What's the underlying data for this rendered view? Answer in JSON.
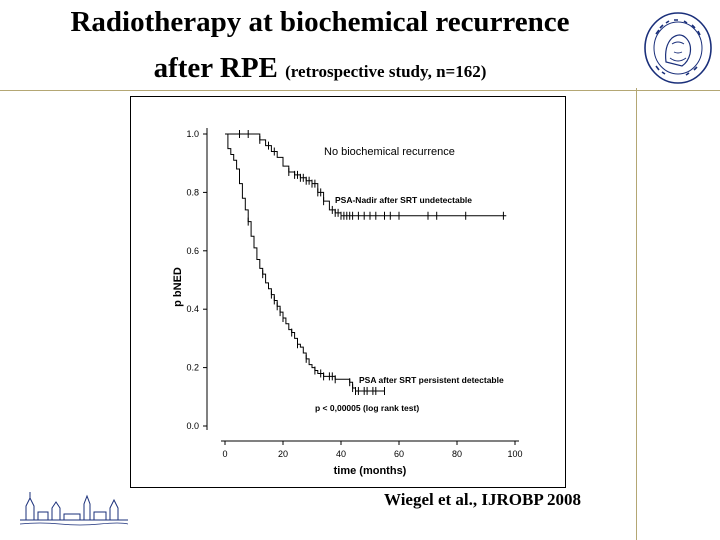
{
  "slide": {
    "title_line1": "Radiotherapy at biochemical recurrence",
    "title_line2_main": "after RPE",
    "title_line2_sub": "(retrospective study, n=162)",
    "citation": "Wiegel et al., IJROBP 2008"
  },
  "colors": {
    "rule": "#b4a774",
    "seal": "#1a2f7a",
    "curve": "#000000"
  },
  "chart_data": {
    "type": "line",
    "title": "",
    "xlabel": "time (months)",
    "ylabel": "p bNED",
    "xlim": [
      0,
      100
    ],
    "ylim": [
      0,
      1.0
    ],
    "x_ticks": [
      0,
      20,
      40,
      60,
      80,
      100
    ],
    "y_ticks": [
      0.0,
      0.2,
      0.4,
      0.6,
      0.8,
      1.0
    ],
    "x_tick_labels": [
      "0",
      "20",
      "40",
      "60",
      "80",
      "100"
    ],
    "y_tick_labels": [
      "0.0",
      "0.2",
      "0.4",
      "0.6",
      "0.8",
      "1.0"
    ],
    "grid": false,
    "annotations": {
      "top": "No biochemical recurrence",
      "pvalue": "p < 0,00005 (log rank test)"
    },
    "series": [
      {
        "name": "PSA-Nadir after SRT undetectable",
        "step": true,
        "x": [
          0,
          1,
          2,
          10,
          12,
          14,
          16,
          18,
          20,
          22,
          24,
          26,
          28,
          30,
          32,
          34,
          36,
          38,
          40,
          42,
          44,
          50,
          60,
          70,
          80,
          90,
          97
        ],
        "y": [
          1.0,
          1.0,
          1.0,
          1.0,
          0.98,
          0.96,
          0.94,
          0.92,
          0.89,
          0.87,
          0.86,
          0.85,
          0.84,
          0.83,
          0.8,
          0.77,
          0.74,
          0.73,
          0.72,
          0.72,
          0.72,
          0.72,
          0.72,
          0.72,
          0.72,
          0.72,
          0.72
        ],
        "censor_x": [
          5,
          8,
          12,
          15,
          17,
          22,
          24,
          25,
          26,
          27,
          28,
          29,
          30,
          31,
          32,
          33,
          34,
          37,
          38,
          39,
          40,
          41,
          42,
          43,
          44,
          46,
          48,
          50,
          52,
          55,
          57,
          60,
          70,
          73,
          83,
          96
        ]
      },
      {
        "name": "PSA after SRT persistent detectable",
        "step": true,
        "x": [
          0,
          1,
          2,
          3,
          4,
          5,
          6,
          7,
          8,
          9,
          10,
          11,
          12,
          13,
          14,
          15,
          16,
          17,
          18,
          19,
          20,
          21,
          22,
          23,
          24,
          25,
          26,
          27,
          28,
          29,
          30,
          31,
          32,
          34,
          36,
          38,
          40,
          42,
          43,
          44,
          45,
          46,
          47,
          48,
          55
        ],
        "y": [
          1.0,
          0.95,
          0.93,
          0.91,
          0.88,
          0.83,
          0.78,
          0.74,
          0.7,
          0.65,
          0.61,
          0.57,
          0.54,
          0.52,
          0.49,
          0.47,
          0.45,
          0.43,
          0.41,
          0.39,
          0.37,
          0.35,
          0.33,
          0.32,
          0.3,
          0.28,
          0.27,
          0.25,
          0.23,
          0.21,
          0.2,
          0.19,
          0.18,
          0.17,
          0.17,
          0.16,
          0.16,
          0.16,
          0.15,
          0.13,
          0.12,
          0.12,
          0.12,
          0.12,
          0.12
        ],
        "censor_x": [
          8,
          13,
          16,
          17,
          18,
          19,
          20,
          23,
          25,
          28,
          31,
          33,
          34,
          36,
          37,
          38,
          43,
          44,
          45,
          46,
          48,
          49,
          51,
          52,
          55
        ]
      }
    ],
    "series_label_positions": [
      "right-of-plateau",
      "right-of-tail"
    ]
  }
}
